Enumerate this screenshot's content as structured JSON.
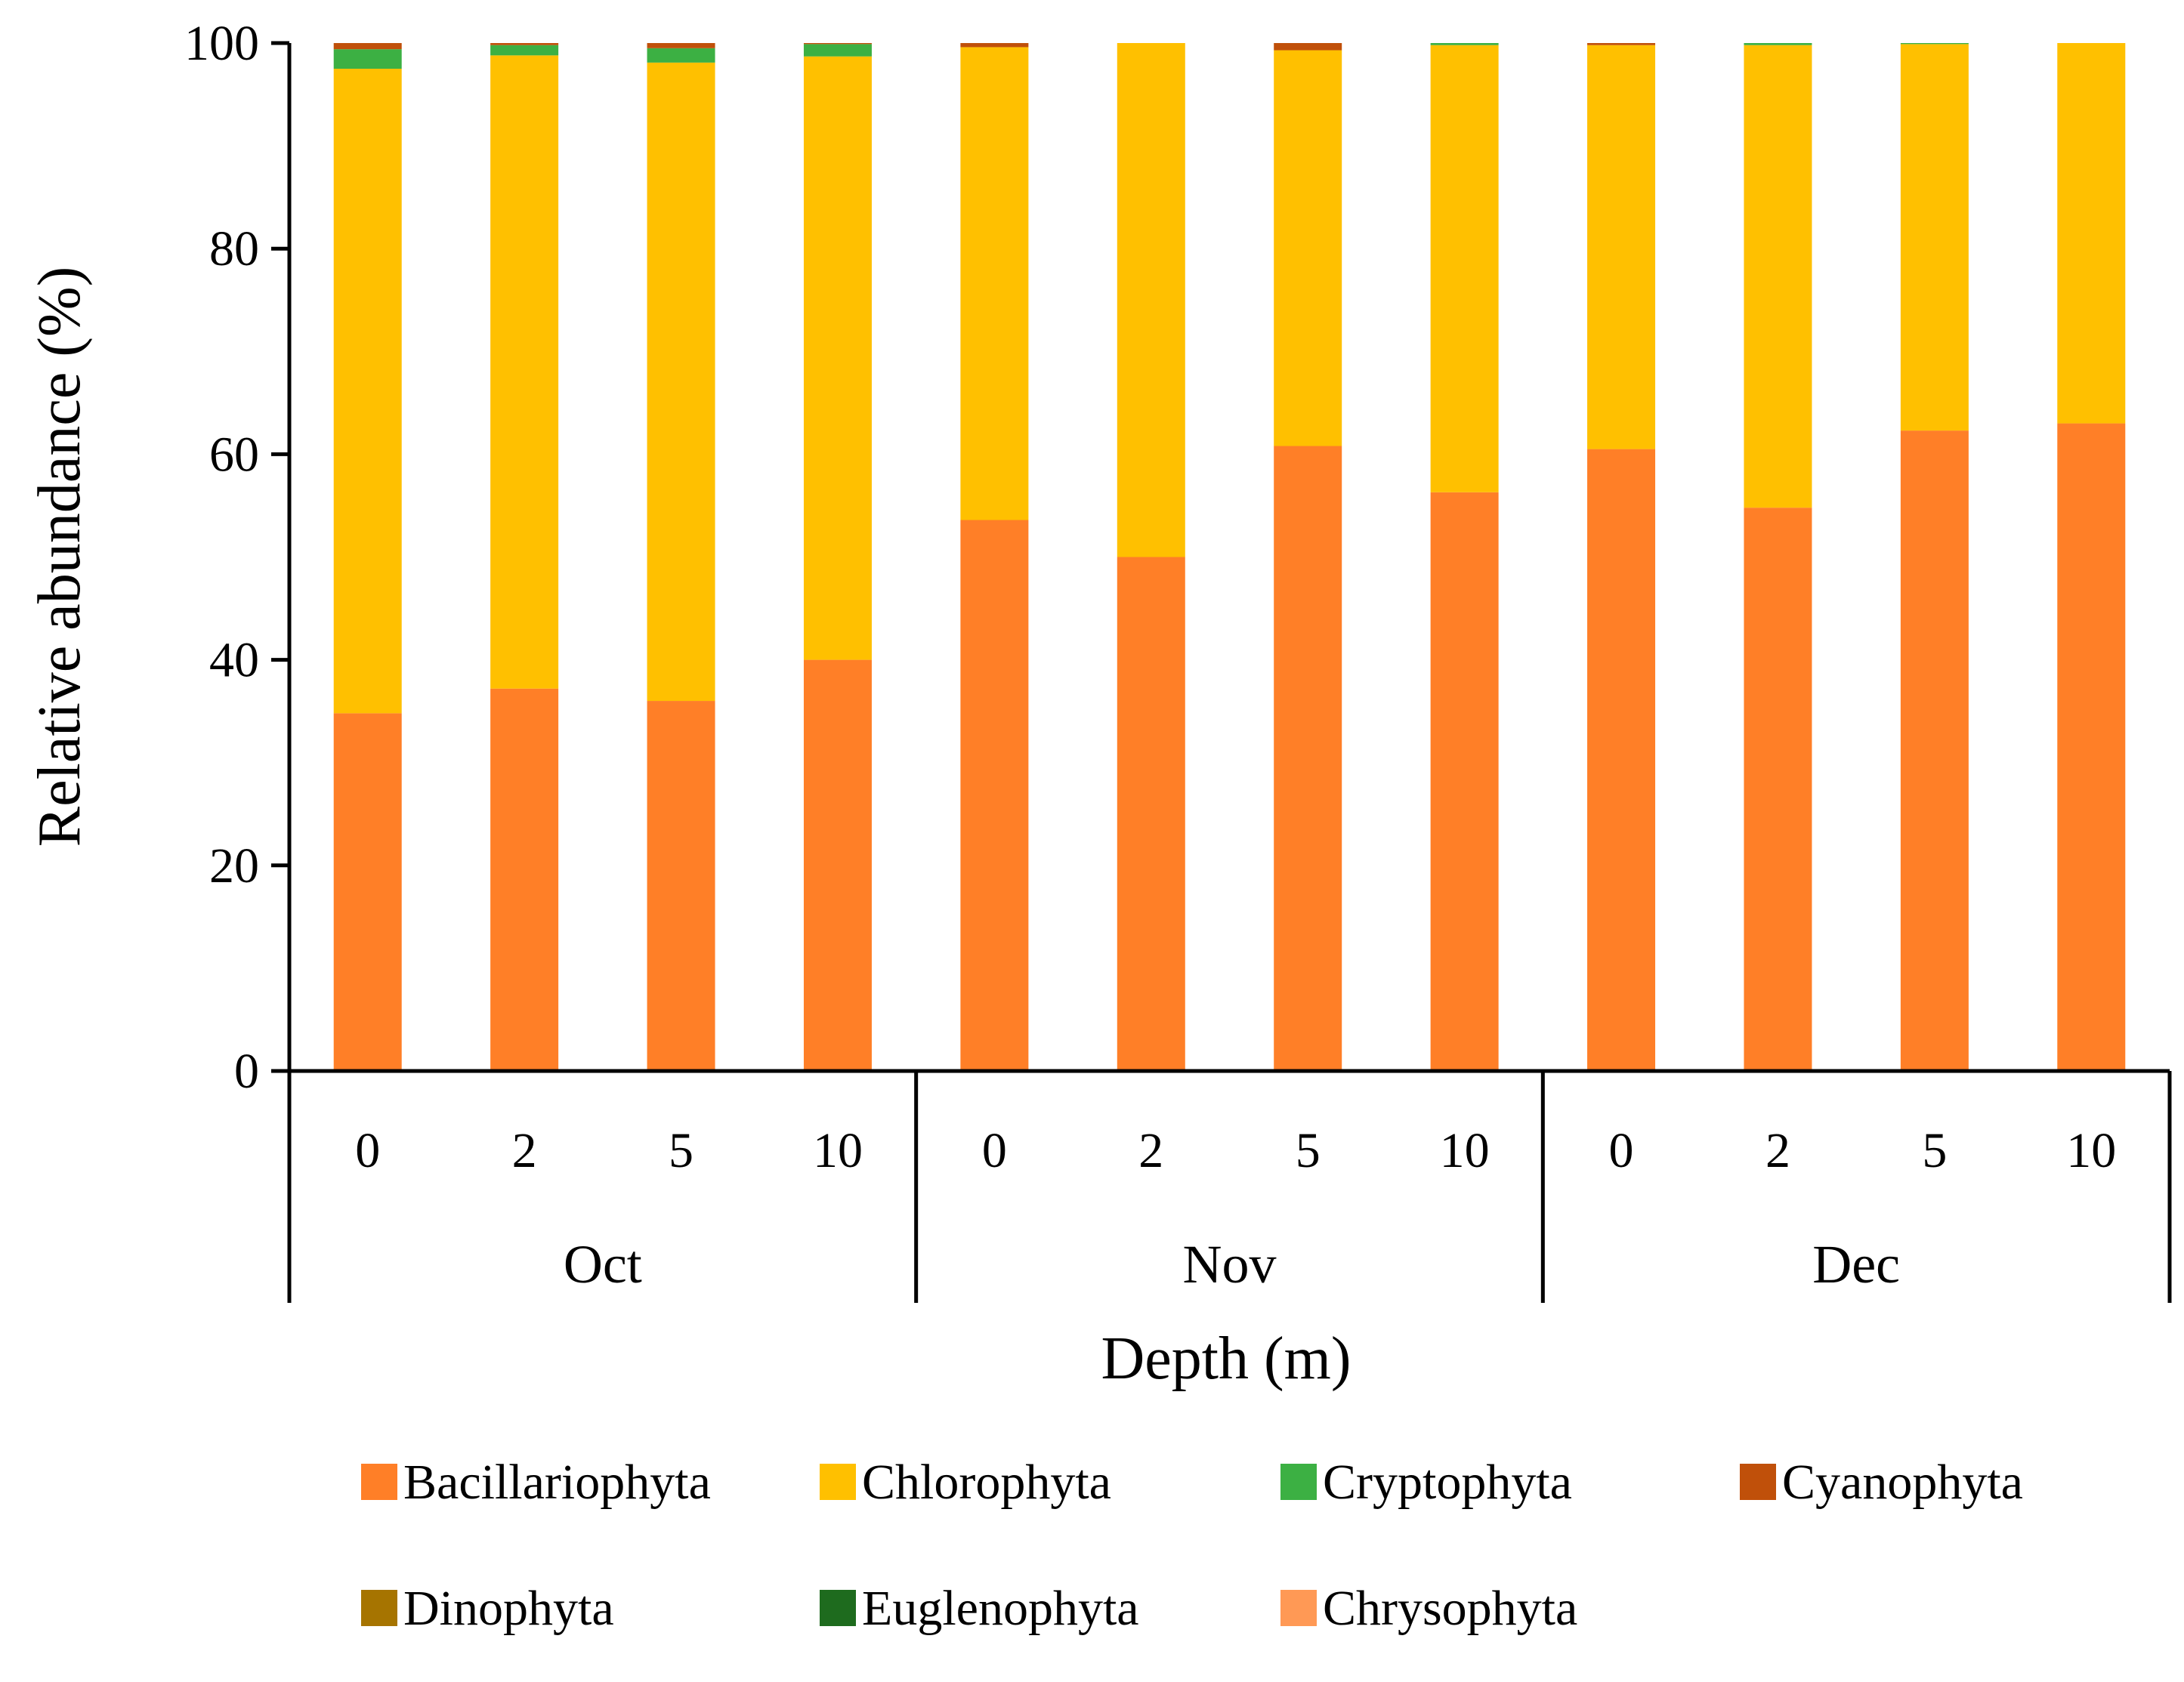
{
  "chart_data": {
    "type": "bar",
    "stacked": true,
    "xlabel": "Depth (m)",
    "ylabel": "Relative abundance (%)",
    "ylim": [
      0,
      100
    ],
    "yticks": [
      0,
      20,
      40,
      60,
      80,
      100
    ],
    "grid": false,
    "legend_position": "bottom",
    "groups": [
      {
        "label": "Oct",
        "categories": [
          "0",
          "2",
          "5",
          "10"
        ]
      },
      {
        "label": "Nov",
        "categories": [
          "0",
          "2",
          "5",
          "10"
        ]
      },
      {
        "label": "Dec",
        "categories": [
          "0",
          "2",
          "5",
          "10"
        ]
      }
    ],
    "series": [
      {
        "name": "Bacillariophyta",
        "color": "#FF7F27",
        "values": [
          34.8,
          37.2,
          36.0,
          40.0,
          53.6,
          50.0,
          60.8,
          56.3,
          60.5,
          54.8,
          62.3,
          63.0
        ]
      },
      {
        "name": "Chlorophyta",
        "color": "#FFC000",
        "values": [
          62.7,
          61.6,
          62.1,
          58.7,
          46.0,
          50.0,
          38.5,
          43.5,
          39.3,
          45.0,
          37.6,
          37.0
        ]
      },
      {
        "name": "Cryptophyta",
        "color": "#3CB043",
        "values": [
          1.9,
          1.0,
          1.4,
          1.2,
          0.0,
          0.0,
          0.0,
          0.2,
          0.0,
          0.2,
          0.1,
          0.0
        ]
      },
      {
        "name": "Cyanophyta",
        "color": "#C0500A",
        "values": [
          0.6,
          0.2,
          0.5,
          0.1,
          0.4,
          0.0,
          0.7,
          0.0,
          0.2,
          0.0,
          0.0,
          0.0
        ]
      },
      {
        "name": "Dinophyta",
        "color": "#A67400",
        "values": [
          0.0,
          0.0,
          0.0,
          0.0,
          0.0,
          0.0,
          0.0,
          0.0,
          0.0,
          0.0,
          0.0,
          0.0
        ]
      },
      {
        "name": "Euglenophyta",
        "color": "#1E6B1E",
        "values": [
          0.0,
          0.0,
          0.0,
          0.0,
          0.0,
          0.0,
          0.0,
          0.0,
          0.0,
          0.0,
          0.0,
          0.0
        ]
      },
      {
        "name": "Chrysophyta",
        "color": "#FF9955",
        "values": [
          0.0,
          0.0,
          0.0,
          0.0,
          0.0,
          0.0,
          0.0,
          0.0,
          0.0,
          0.0,
          0.0,
          0.0
        ]
      }
    ]
  }
}
